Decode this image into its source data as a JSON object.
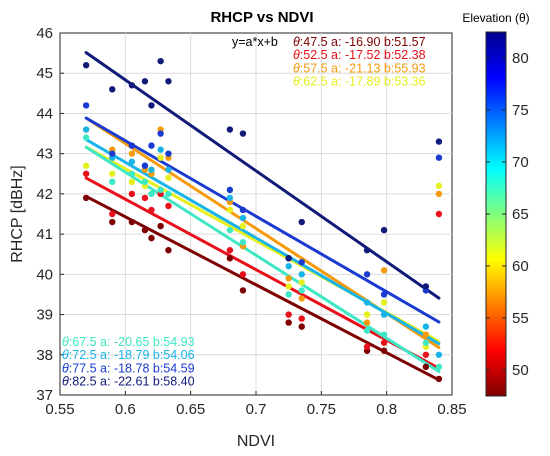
{
  "chart_data": {
    "type": "scatter",
    "title": "RHCP vs NDVI",
    "xlabel": "NDVI",
    "ylabel": "RHCP [dBHz]",
    "xlim": [
      0.55,
      0.85
    ],
    "ylim": [
      37,
      46
    ],
    "xticks": [
      "0.55",
      "0.6",
      "0.65",
      "0.7",
      "0.75",
      "0.8",
      "0.85"
    ],
    "yticks": [
      "37",
      "38",
      "39",
      "40",
      "41",
      "42",
      "43",
      "44",
      "45",
      "46"
    ],
    "grid": true,
    "equation": "y=a*x+b",
    "colorbar": {
      "label": "Elevation (θ)",
      "range": [
        47.5,
        82.5
      ],
      "ticks": [
        "50",
        "55",
        "60",
        "65",
        "70",
        "75",
        "80"
      ],
      "colormap": "jet"
    },
    "series": [
      {
        "theta": "47.5",
        "a": "-16.90",
        "b": "51.57",
        "slope": -16.9,
        "intercept": 51.57,
        "color": "#7f0000",
        "points": [
          [
            0.57,
            41.9
          ],
          [
            0.59,
            41.3
          ],
          [
            0.605,
            41.3
          ],
          [
            0.615,
            41.1
          ],
          [
            0.62,
            40.9
          ],
          [
            0.627,
            41.2
          ],
          [
            0.633,
            40.6
          ],
          [
            0.68,
            40.4
          ],
          [
            0.69,
            39.6
          ],
          [
            0.725,
            38.8
          ],
          [
            0.735,
            38.7
          ],
          [
            0.785,
            38.1
          ],
          [
            0.798,
            38.1
          ],
          [
            0.83,
            37.7
          ],
          [
            0.84,
            37.4
          ]
        ]
      },
      {
        "theta": "52.5",
        "a": "-17.52",
        "b": "52.38",
        "slope": -17.52,
        "intercept": 52.38,
        "color": "#e8101a",
        "points": [
          [
            0.57,
            42.5
          ],
          [
            0.59,
            41.5
          ],
          [
            0.605,
            42.0
          ],
          [
            0.615,
            41.9
          ],
          [
            0.62,
            41.6
          ],
          [
            0.627,
            42.0
          ],
          [
            0.633,
            41.7
          ],
          [
            0.68,
            40.6
          ],
          [
            0.69,
            40.0
          ],
          [
            0.725,
            39.0
          ],
          [
            0.735,
            38.9
          ],
          [
            0.785,
            38.2
          ],
          [
            0.798,
            38.3
          ],
          [
            0.83,
            38.0
          ],
          [
            0.84,
            41.5
          ]
        ]
      },
      {
        "theta": "57.5",
        "a": "-21.13",
        "b": "55.93",
        "slope": -21.13,
        "intercept": 55.93,
        "color": "#f59a0c",
        "points": [
          [
            0.57,
            43.6
          ],
          [
            0.59,
            43.1
          ],
          [
            0.605,
            43.0
          ],
          [
            0.615,
            42.6
          ],
          [
            0.62,
            42.5
          ],
          [
            0.627,
            43.6
          ],
          [
            0.633,
            42.9
          ],
          [
            0.68,
            41.8
          ],
          [
            0.69,
            40.7
          ],
          [
            0.725,
            39.9
          ],
          [
            0.735,
            39.4
          ],
          [
            0.785,
            38.8
          ],
          [
            0.798,
            40.1
          ],
          [
            0.83,
            38.5
          ],
          [
            0.84,
            42.0
          ]
        ]
      },
      {
        "theta": "62.5",
        "a": "-17.89",
        "b": "53.36",
        "slope": -17.89,
        "intercept": 53.36,
        "color": "#e6f01e",
        "points": [
          [
            0.57,
            42.7
          ],
          [
            0.59,
            42.5
          ],
          [
            0.605,
            42.3
          ],
          [
            0.615,
            42.2
          ],
          [
            0.62,
            42.6
          ],
          [
            0.627,
            42.9
          ],
          [
            0.633,
            42.4
          ],
          [
            0.68,
            41.6
          ],
          [
            0.69,
            41.2
          ],
          [
            0.725,
            39.7
          ],
          [
            0.735,
            39.8
          ],
          [
            0.785,
            39.0
          ],
          [
            0.798,
            39.3
          ],
          [
            0.83,
            38.2
          ],
          [
            0.84,
            42.2
          ]
        ]
      },
      {
        "theta": "67.5",
        "a": "-20.65",
        "b": "54.93",
        "slope": -20.65,
        "intercept": 54.93,
        "color": "#3ee8c4",
        "points": [
          [
            0.57,
            43.4
          ],
          [
            0.59,
            42.3
          ],
          [
            0.605,
            42.5
          ],
          [
            0.615,
            42.3
          ],
          [
            0.62,
            42.0
          ],
          [
            0.627,
            42.1
          ],
          [
            0.633,
            42.0
          ],
          [
            0.68,
            41.1
          ],
          [
            0.69,
            40.8
          ],
          [
            0.725,
            39.5
          ],
          [
            0.735,
            39.6
          ],
          [
            0.785,
            38.6
          ],
          [
            0.798,
            38.5
          ],
          [
            0.83,
            38.3
          ],
          [
            0.84,
            37.7
          ]
        ]
      },
      {
        "theta": "72.5",
        "a": "-18.79",
        "b": "54.06",
        "slope": -18.79,
        "intercept": 54.06,
        "color": "#18b4e8",
        "points": [
          [
            0.57,
            43.6
          ],
          [
            0.59,
            42.9
          ],
          [
            0.605,
            42.8
          ],
          [
            0.615,
            42.7
          ],
          [
            0.62,
            42.6
          ],
          [
            0.627,
            43.1
          ],
          [
            0.633,
            42.6
          ],
          [
            0.68,
            41.9
          ],
          [
            0.69,
            41.4
          ],
          [
            0.725,
            40.2
          ],
          [
            0.735,
            40.0
          ],
          [
            0.785,
            39.3
          ],
          [
            0.798,
            39.0
          ],
          [
            0.83,
            38.7
          ],
          [
            0.84,
            38.0
          ]
        ]
      },
      {
        "theta": "77.5",
        "a": "-18.78",
        "b": "54.59",
        "slope": -18.78,
        "intercept": 54.59,
        "color": "#1a3ad0",
        "points": [
          [
            0.57,
            44.2
          ],
          [
            0.59,
            43.0
          ],
          [
            0.605,
            43.2
          ],
          [
            0.615,
            42.7
          ],
          [
            0.62,
            43.2
          ],
          [
            0.627,
            43.5
          ],
          [
            0.633,
            43.0
          ],
          [
            0.68,
            42.1
          ],
          [
            0.69,
            41.6
          ],
          [
            0.725,
            40.4
          ],
          [
            0.735,
            40.3
          ],
          [
            0.785,
            40.0
          ],
          [
            0.798,
            39.5
          ],
          [
            0.83,
            39.6
          ],
          [
            0.84,
            42.9
          ]
        ]
      },
      {
        "theta": "82.5",
        "a": "-22.61",
        "b": "58.40",
        "slope": -22.61,
        "intercept": 58.4,
        "color": "#101a78",
        "points": [
          [
            0.57,
            45.2
          ],
          [
            0.59,
            44.6
          ],
          [
            0.605,
            44.7
          ],
          [
            0.615,
            44.8
          ],
          [
            0.62,
            44.2
          ],
          [
            0.627,
            45.3
          ],
          [
            0.633,
            44.8
          ],
          [
            0.68,
            43.6
          ],
          [
            0.69,
            43.5
          ],
          [
            0.725,
            40.4
          ],
          [
            0.735,
            41.3
          ],
          [
            0.785,
            40.6
          ],
          [
            0.798,
            41.1
          ],
          [
            0.83,
            39.7
          ],
          [
            0.84,
            43.3
          ]
        ]
      }
    ],
    "legend_top": [
      {
        "theta": "47.5",
        "a": "-16.90",
        "b": "51.57",
        "color": "#7f0000"
      },
      {
        "theta": "52.5",
        "a": "-17.52",
        "b": "52.38",
        "color": "#e8101a"
      },
      {
        "theta": "57.5",
        "a": "-21.13",
        "b": "55.93",
        "color": "#f59a0c"
      },
      {
        "theta": "62.5",
        "a": "-17.89",
        "b": "53.36",
        "color": "#e6f01e"
      }
    ],
    "legend_bottom": [
      {
        "theta": "67.5",
        "a": "-20.65",
        "b": "54.93",
        "color": "#3ee8c4"
      },
      {
        "theta": "72.5",
        "a": "-18.79",
        "b": "54.06",
        "color": "#18b4e8"
      },
      {
        "theta": "77.5",
        "a": "-18.78",
        "b": "54.59",
        "color": "#1a3ad0"
      },
      {
        "theta": "82.5",
        "a": "-22.61",
        "b": "58.40",
        "color": "#101a78"
      }
    ]
  }
}
